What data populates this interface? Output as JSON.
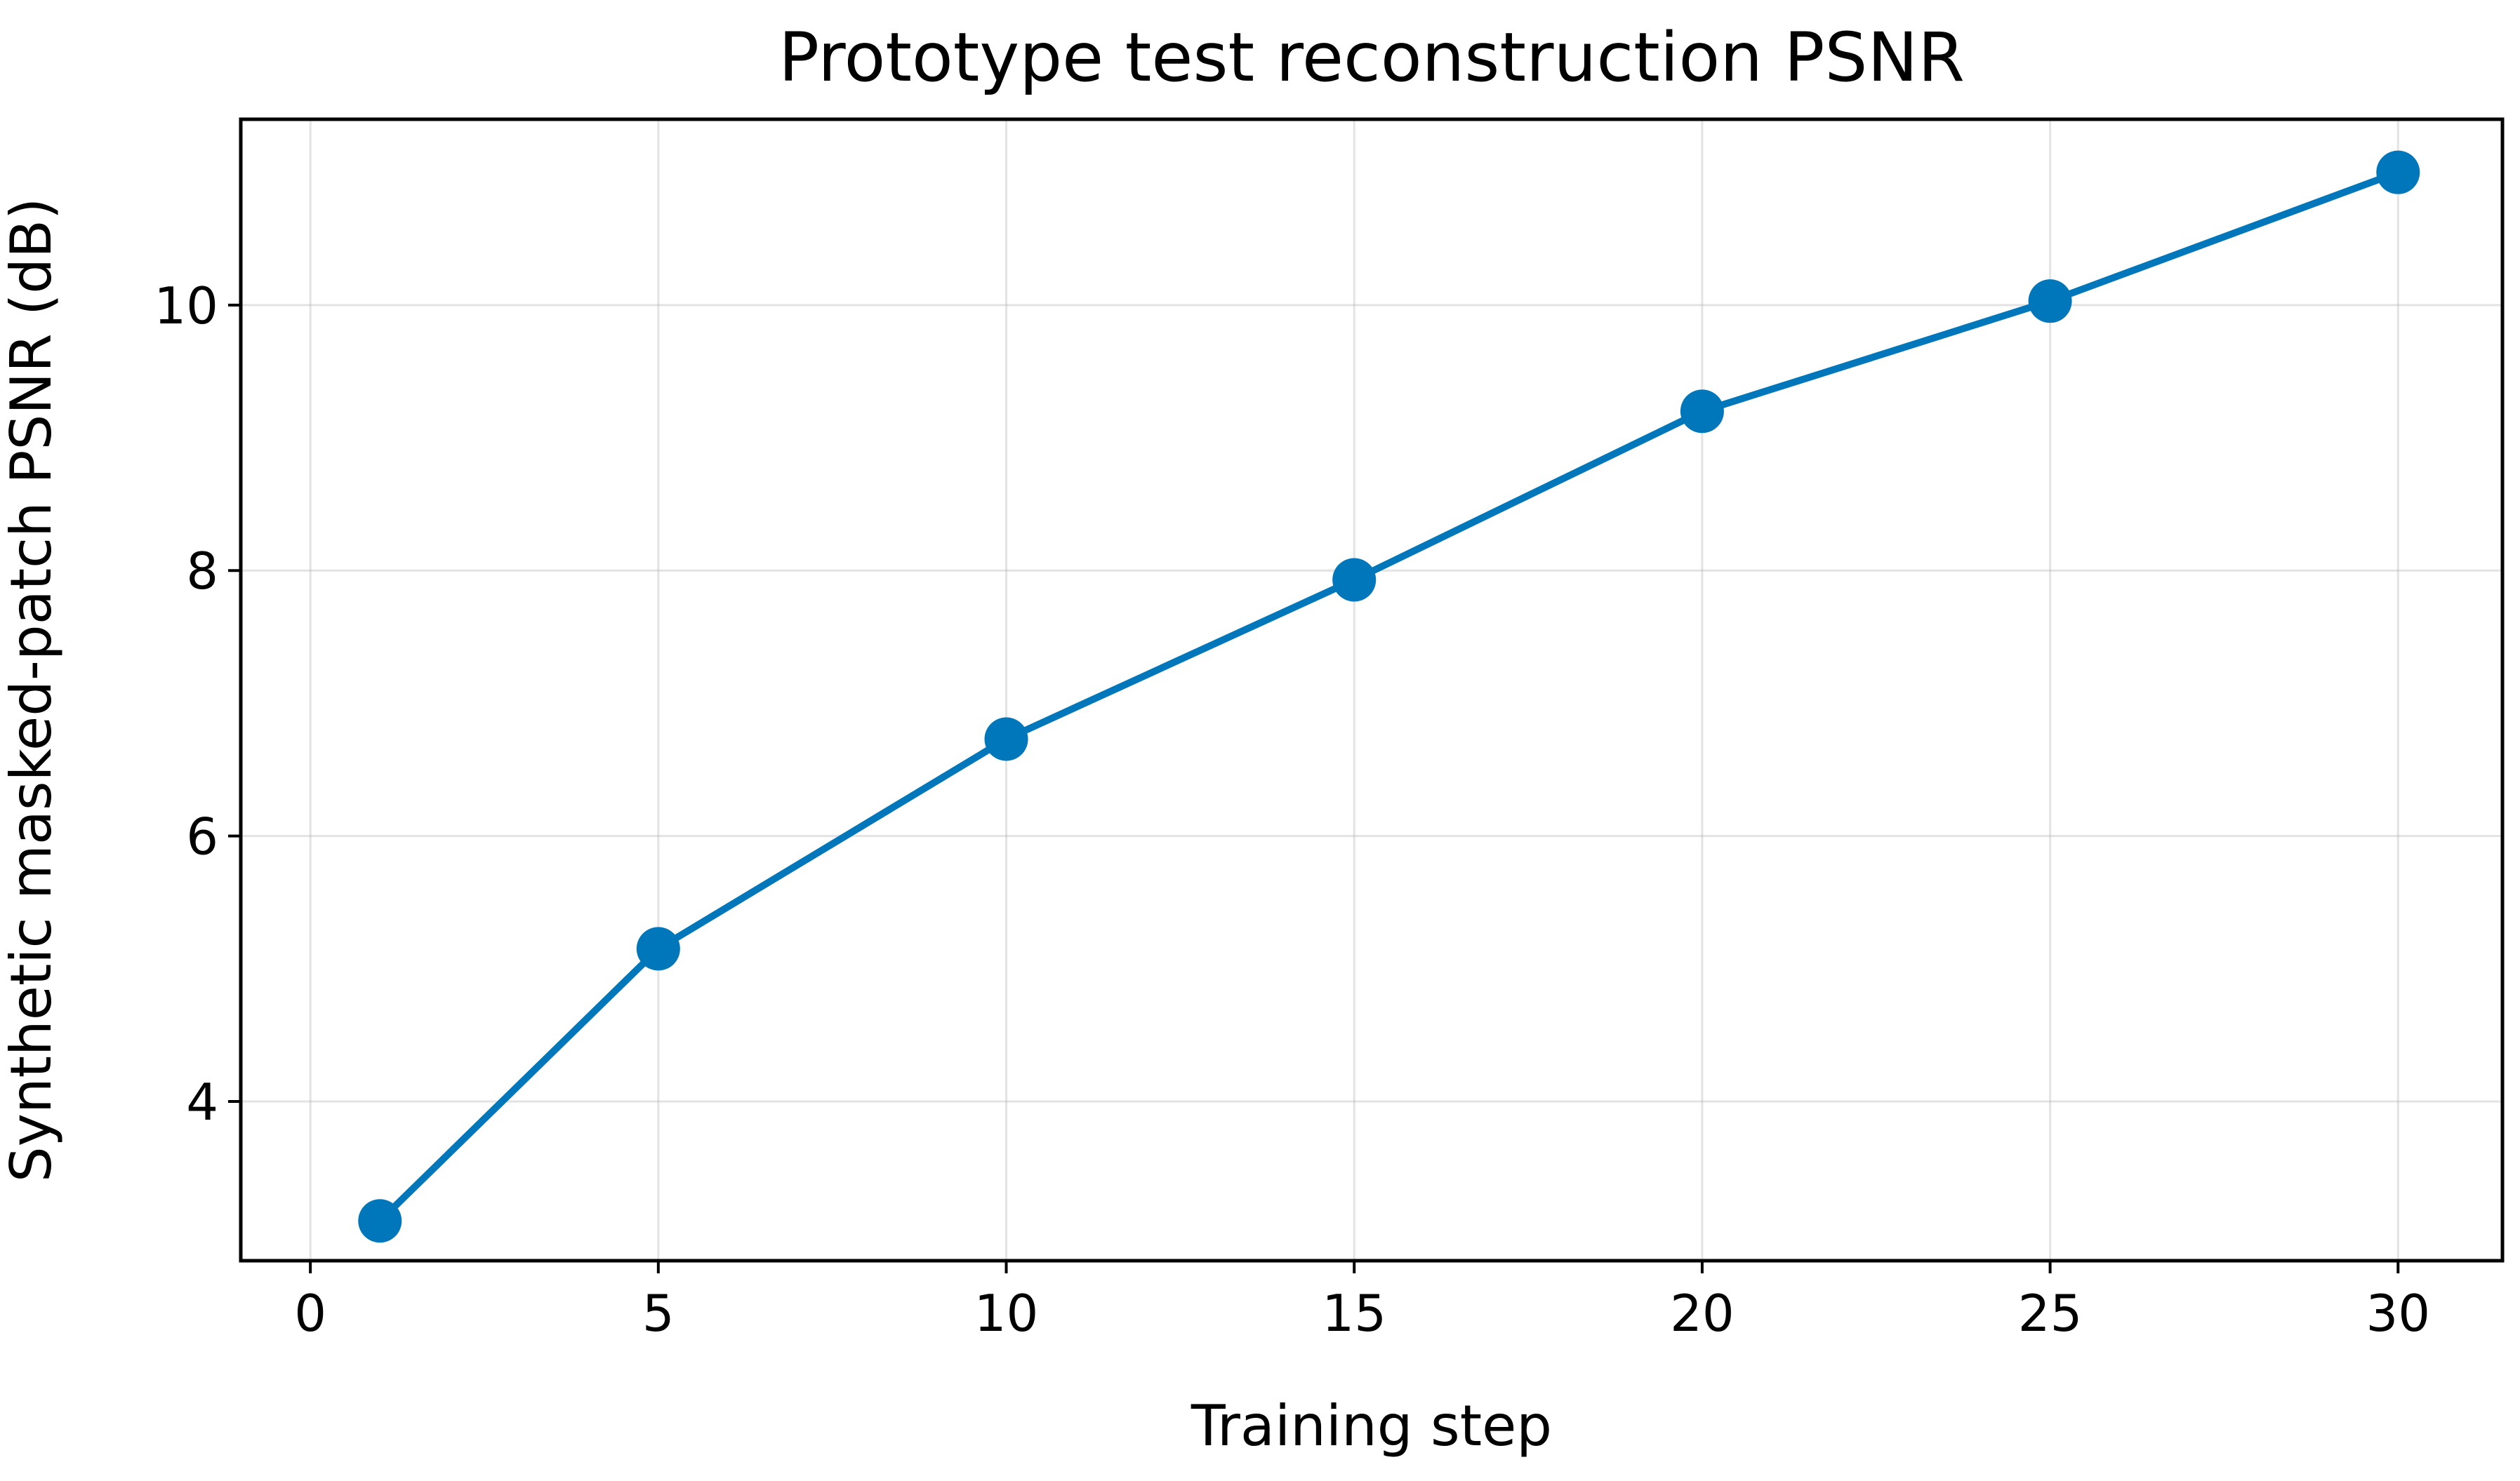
{
  "chart_data": {
    "type": "line",
    "title": "Prototype test reconstruction PSNR",
    "xlabel": "Training step",
    "ylabel": "Synthetic masked-patch PSNR (dB)",
    "xlim": [
      -1.0,
      31.5
    ],
    "ylim": [
      2.8,
      11.4
    ],
    "xticks": [
      0,
      5,
      10,
      15,
      20,
      25,
      30
    ],
    "yticks": [
      4,
      6,
      8,
      10
    ],
    "grid": true,
    "legend": "none",
    "series": [
      {
        "color": "#0077BB",
        "marker": "circle",
        "x": [
          1,
          5,
          10,
          15,
          20,
          25,
          30
        ],
        "y": [
          3.1,
          5.15,
          6.73,
          7.93,
          9.2,
          10.03,
          11.0
        ]
      }
    ]
  }
}
